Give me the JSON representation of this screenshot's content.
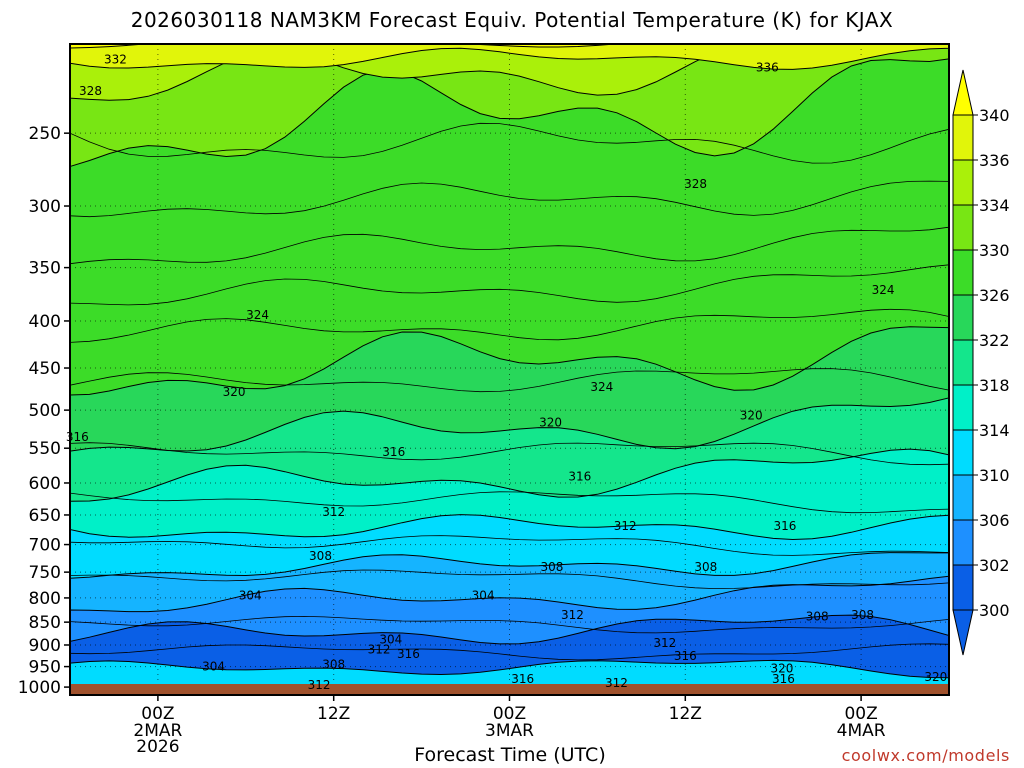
{
  "title": "2026030118 NAM3KM Forecast Equiv. Potential Temperature (K) for KJAX",
  "credit": "coolwx.com/models",
  "chart_data": {
    "type": "heatmap",
    "title": "2026030118 NAM3KM Forecast Equiv. Potential Temperature (K) for KJAX",
    "xlabel": "Forecast Time (UTC)",
    "ylabel": "",
    "units": "K",
    "x_ticks": [
      {
        "label": "00Z",
        "sub": [
          "2MAR",
          "2026"
        ],
        "hours": 6
      },
      {
        "label": "12Z",
        "sub": [],
        "hours": 18
      },
      {
        "label": "00Z",
        "sub": [
          "3MAR"
        ],
        "hours": 30
      },
      {
        "label": "12Z",
        "sub": [],
        "hours": 42
      },
      {
        "label": "00Z",
        "sub": [
          "4MAR"
        ],
        "hours": 54
      }
    ],
    "x_range_hours": [
      0,
      60
    ],
    "y_ticks": [
      250,
      300,
      350,
      400,
      450,
      500,
      550,
      600,
      650,
      700,
      750,
      800,
      850,
      900,
      950,
      1000
    ],
    "y_range_hpa": [
      200,
      1020
    ],
    "y_scale": "log",
    "colorbar": {
      "levels": [
        300,
        302,
        306,
        310,
        314,
        318,
        322,
        326,
        330,
        334,
        336,
        340
      ],
      "labels": [
        "340",
        "336",
        "334",
        "330",
        "326",
        "322",
        "318",
        "314",
        "310",
        "306",
        "302",
        "300"
      ],
      "colors": [
        "#0a5fe6",
        "#1e90ff",
        "#15b4ff",
        "#00dcff",
        "#00f0c8",
        "#14e68c",
        "#28d75a",
        "#3cdc28",
        "#78e614",
        "#aaf00a",
        "#e1f50a",
        "#ffff00"
      ]
    },
    "contour_labels": [
      {
        "value": "332",
        "hours": 3.1,
        "hpa": 208
      },
      {
        "value": "328",
        "hours": 1.4,
        "hpa": 225
      },
      {
        "value": "336",
        "hours": 47.6,
        "hpa": 212
      },
      {
        "value": "328",
        "hours": 42.7,
        "hpa": 284
      },
      {
        "value": "324",
        "hours": 12.8,
        "hpa": 394
      },
      {
        "value": "324",
        "hours": 55.5,
        "hpa": 370
      },
      {
        "value": "324",
        "hours": 36.3,
        "hpa": 472
      },
      {
        "value": "320",
        "hours": 11.2,
        "hpa": 478
      },
      {
        "value": "320",
        "hours": 46.5,
        "hpa": 507
      },
      {
        "value": "320",
        "hours": 32.8,
        "hpa": 516
      },
      {
        "value": "316",
        "hours": 0.5,
        "hpa": 535
      },
      {
        "value": "316",
        "hours": 22.1,
        "hpa": 555
      },
      {
        "value": "316",
        "hours": 34.8,
        "hpa": 590
      },
      {
        "value": "312",
        "hours": 18.0,
        "hpa": 645
      },
      {
        "value": "312",
        "hours": 37.9,
        "hpa": 668
      },
      {
        "value": "316",
        "hours": 48.8,
        "hpa": 668
      },
      {
        "value": "308",
        "hours": 17.1,
        "hpa": 720
      },
      {
        "value": "308",
        "hours": 32.9,
        "hpa": 740
      },
      {
        "value": "308",
        "hours": 43.4,
        "hpa": 740
      },
      {
        "value": "304",
        "hours": 12.3,
        "hpa": 795
      },
      {
        "value": "304",
        "hours": 28.2,
        "hpa": 795
      },
      {
        "value": "312",
        "hours": 34.3,
        "hpa": 835
      },
      {
        "value": "308",
        "hours": 51.0,
        "hpa": 838
      },
      {
        "value": "308",
        "hours": 54.1,
        "hpa": 835
      },
      {
        "value": "304",
        "hours": 21.9,
        "hpa": 888
      },
      {
        "value": "312",
        "hours": 21.1,
        "hpa": 910
      },
      {
        "value": "316",
        "hours": 23.1,
        "hpa": 920
      },
      {
        "value": "312",
        "hours": 40.6,
        "hpa": 895
      },
      {
        "value": "316",
        "hours": 42.0,
        "hpa": 925
      },
      {
        "value": "308",
        "hours": 18.0,
        "hpa": 945
      },
      {
        "value": "304",
        "hours": 9.8,
        "hpa": 950
      },
      {
        "value": "320",
        "hours": 48.6,
        "hpa": 955
      },
      {
        "value": "316",
        "hours": 30.9,
        "hpa": 980
      },
      {
        "value": "316",
        "hours": 48.7,
        "hpa": 980
      },
      {
        "value": "312",
        "hours": 17.0,
        "hpa": 995
      },
      {
        "value": "312",
        "hours": 37.3,
        "hpa": 990
      },
      {
        "value": "320",
        "hours": 59.1,
        "hpa": 975
      }
    ],
    "grid": true,
    "legend": "colorbar-right",
    "terrain_color": "#a0522d"
  }
}
